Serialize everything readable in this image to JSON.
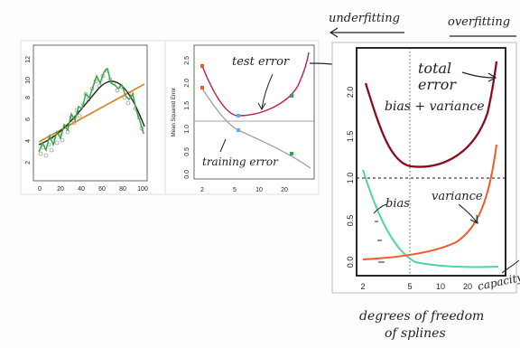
{
  "panel_left": {
    "y_ticks": [
      "2",
      "4",
      "6",
      "8",
      "10",
      "12"
    ],
    "x_ticks": [
      "0",
      "20",
      "40",
      "60",
      "80",
      "100"
    ]
  },
  "panel_middle": {
    "ylabel": "Mean Squared Error",
    "y_ticks": [
      "0.0",
      "0.5",
      "1.0",
      "1.5",
      "2.0",
      "2.5"
    ],
    "x_ticks": [
      "2",
      "5",
      "10",
      "20"
    ],
    "label_test": "test error",
    "label_train": "training error"
  },
  "panel_right": {
    "y_ticks": [
      "0.0",
      "0.5",
      "1.0",
      "1.5",
      "2.0"
    ],
    "x_ticks": [
      "2",
      "5",
      "10",
      "20"
    ],
    "label_total_1": "total",
    "label_total_2": "error",
    "label_bias_variance": "bias + variance",
    "label_bias": "bias",
    "label_variance": "variance",
    "label_capacity": "capacity",
    "xlabel_1": "degrees of freedom",
    "xlabel_2": "of splines"
  },
  "top": {
    "underfitting": "underfitting",
    "overfitting": "overfitting"
  },
  "colors": {
    "test": "#c2185b",
    "total": "#8b0a1e",
    "train": "#9e9e9e",
    "bias": "#4cd6a0",
    "variance": "#f05a28",
    "fit_green": "#39a845",
    "fit_orange": "#d98a2a"
  }
}
